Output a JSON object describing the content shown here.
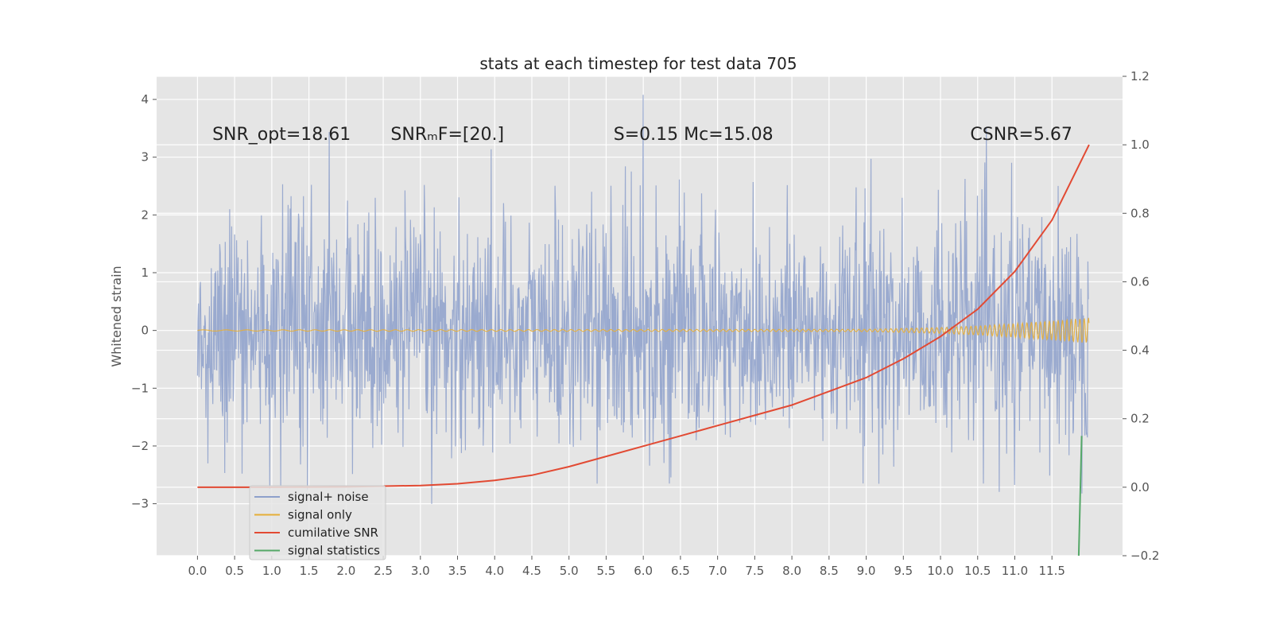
{
  "chart_data": {
    "type": "line",
    "title": "stats at each timestep for test data 705",
    "xlabel": "",
    "ylabel": "Whitened strain",
    "y2label": "",
    "xlim": [
      -0.55,
      12.45
    ],
    "ylim": [
      -3.9,
      4.4
    ],
    "y2lim": [
      -0.2,
      1.2
    ],
    "x_ticks": [
      "0.0",
      "0.5",
      "1.0",
      "1.5",
      "2.0",
      "2.5",
      "3.0",
      "3.5",
      "4.0",
      "4.5",
      "5.0",
      "5.5",
      "6.0",
      "6.5",
      "7.0",
      "7.5",
      "8.0",
      "8.5",
      "9.0",
      "9.5",
      "10.0",
      "10.5",
      "11.0",
      "11.5"
    ],
    "y_ticks": [
      -3,
      -2,
      -1,
      0,
      1,
      2,
      3,
      4
    ],
    "y_tick_labels": [
      "−3",
      "−2",
      "−1",
      "0",
      "1",
      "2",
      "3",
      "4"
    ],
    "y2_ticks": [
      -0.2,
      0.0,
      0.2,
      0.4,
      0.6,
      0.8,
      1.0,
      1.2
    ],
    "y2_tick_labels": [
      "−0.2",
      "0.0",
      "0.2",
      "0.4",
      "0.6",
      "0.8",
      "1.0",
      "1.2"
    ],
    "grid": true,
    "legend_position": "bottom-left",
    "annotations": [
      {
        "text": "SNR_opt=18.61",
        "x": 0.2,
        "y": 3.3
      },
      {
        "text": "SNRₘF=[20.]",
        "x": 2.6,
        "y": 3.3
      },
      {
        "text": "S=0.15   Mᴄ=15.08",
        "x": 5.6,
        "y": 3.3
      },
      {
        "text": "CSNR=5.67",
        "x": 10.4,
        "y": 3.3
      }
    ],
    "series": [
      {
        "name": "signal+ noise",
        "axis": "left",
        "color": "#8da0cb",
        "x_range": [
          0.0,
          11.99
        ],
        "noise_sigma": 1.0,
        "samples": 1800,
        "note_peak": {
          "x": 6.0,
          "y": 4.08
        }
      },
      {
        "name": "signal only",
        "axis": "left",
        "color": "#e5ae38",
        "x": [
          0.0,
          9.0,
          10.0,
          10.5,
          11.0,
          11.5,
          12.0
        ],
        "amplitude": [
          0.01,
          0.02,
          0.05,
          0.08,
          0.12,
          0.17,
          0.22
        ]
      },
      {
        "name": "cumilative SNR",
        "axis": "right",
        "color": "#e24a33",
        "x": [
          0.0,
          1.0,
          2.0,
          3.0,
          3.5,
          4.0,
          4.5,
          5.0,
          5.5,
          6.0,
          6.5,
          7.0,
          7.5,
          8.0,
          8.5,
          9.0,
          9.5,
          10.0,
          10.5,
          11.0,
          11.5,
          12.0
        ],
        "y": [
          0.0,
          0.0,
          0.001,
          0.005,
          0.01,
          0.02,
          0.035,
          0.06,
          0.09,
          0.12,
          0.15,
          0.18,
          0.21,
          0.24,
          0.28,
          0.32,
          0.375,
          0.44,
          0.52,
          0.63,
          0.78,
          1.0
        ]
      },
      {
        "name": "signal statistics",
        "axis": "right",
        "color": "#55a868",
        "x": [
          11.86,
          11.9
        ],
        "y": [
          -0.2,
          0.15
        ]
      }
    ]
  }
}
